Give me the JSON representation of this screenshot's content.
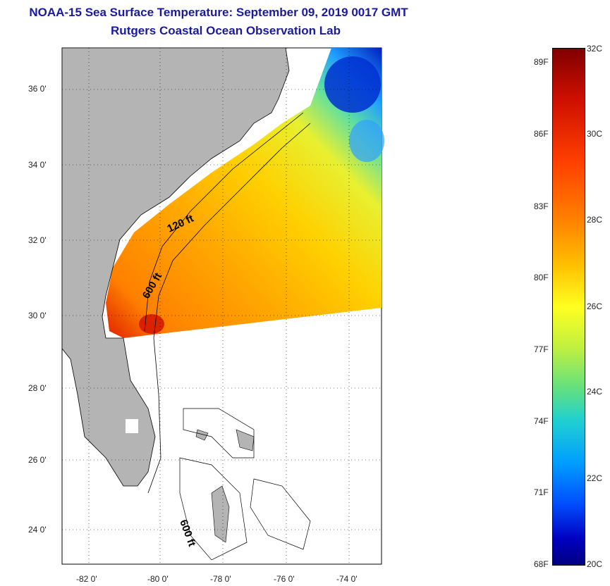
{
  "title": {
    "line1": "NOAA-15 Sea Surface Temperature:  September 09, 2019 0017 GMT",
    "line2": "Rutgers Coastal Ocean Observation Lab"
  },
  "map": {
    "lat_labels": [
      "36 0'",
      "34 0'",
      "32 0'",
      "30 0'",
      "28 0'",
      "26 0'",
      "24 0'"
    ],
    "lon_labels": [
      "-82 0'",
      "-80 0'",
      "-78 0'",
      "-76 0'",
      "-74 0'"
    ],
    "contours": {
      "c120": "120 ft",
      "c600": "600 ft",
      "c600b": "600 ft"
    }
  },
  "colorbar": {
    "fahrenheit": [
      "89F",
      "86F",
      "83F",
      "80F",
      "77F",
      "74F",
      "71F",
      "68F"
    ],
    "celsius": [
      "32C",
      "30C",
      "28C",
      "26C",
      "24C",
      "22C",
      "20C"
    ]
  },
  "colors": {
    "land": "#b4b4b4",
    "title": "#1a1aa0",
    "warm": "#ff8a00",
    "hot": "#d41400",
    "yellow": "#ffd400",
    "cool": "#30c0ff",
    "cold": "#0030d0"
  }
}
